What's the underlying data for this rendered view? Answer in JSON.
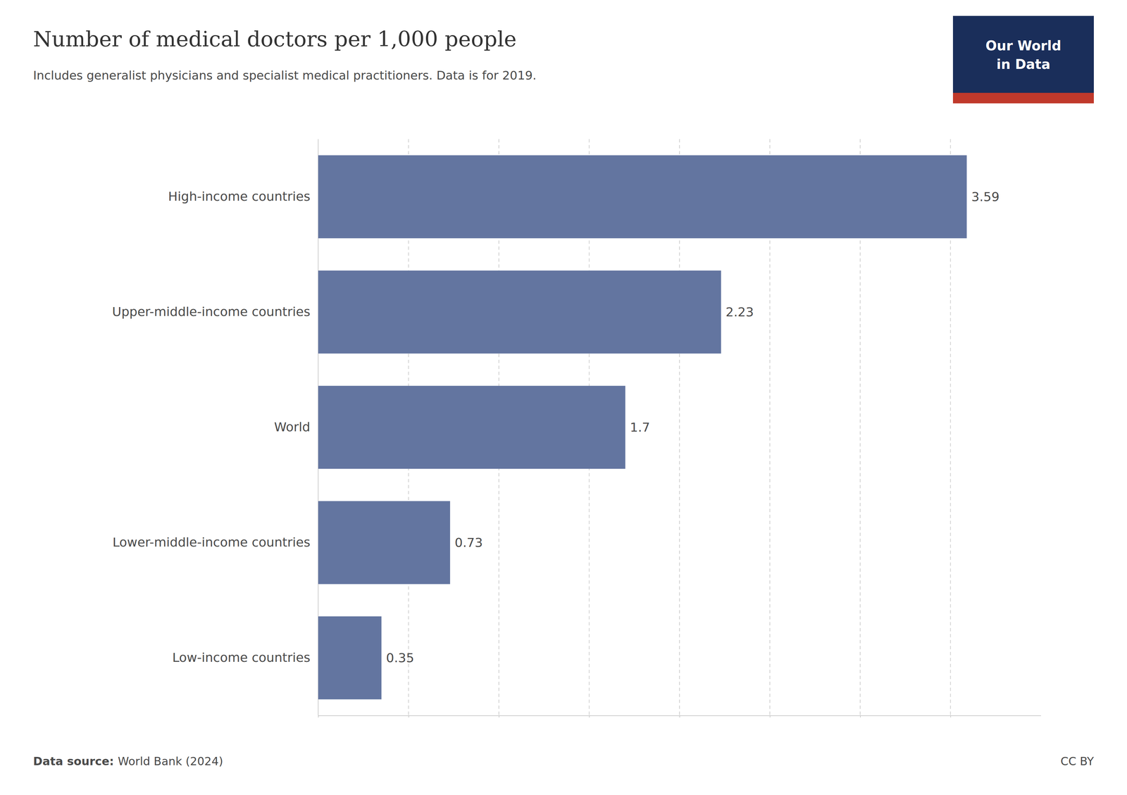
{
  "chart_data": {
    "type": "bar",
    "orientation": "horizontal",
    "title": "Number of medical doctors per 1,000 people",
    "subtitle": "Includes generalist physicians and specialist medical practitioners. Data is for 2019.",
    "categories": [
      "High-income countries",
      "Upper-middle-income countries",
      "World",
      "Lower-middle-income countries",
      "Low-income countries"
    ],
    "values": [
      3.59,
      2.23,
      1.7,
      0.73,
      0.35
    ],
    "color": "#6375a0",
    "xlim": [
      0,
      4.0
    ],
    "xticks": [
      0,
      0.5,
      1,
      1.5,
      2,
      2.5,
      3,
      3.5
    ],
    "grid": true,
    "data_labels": true,
    "tick_labels": false,
    "annotations": [
      "Data source:",
      "World Bank (2024)",
      "CC BY",
      "Our World",
      "in Data"
    ]
  }
}
